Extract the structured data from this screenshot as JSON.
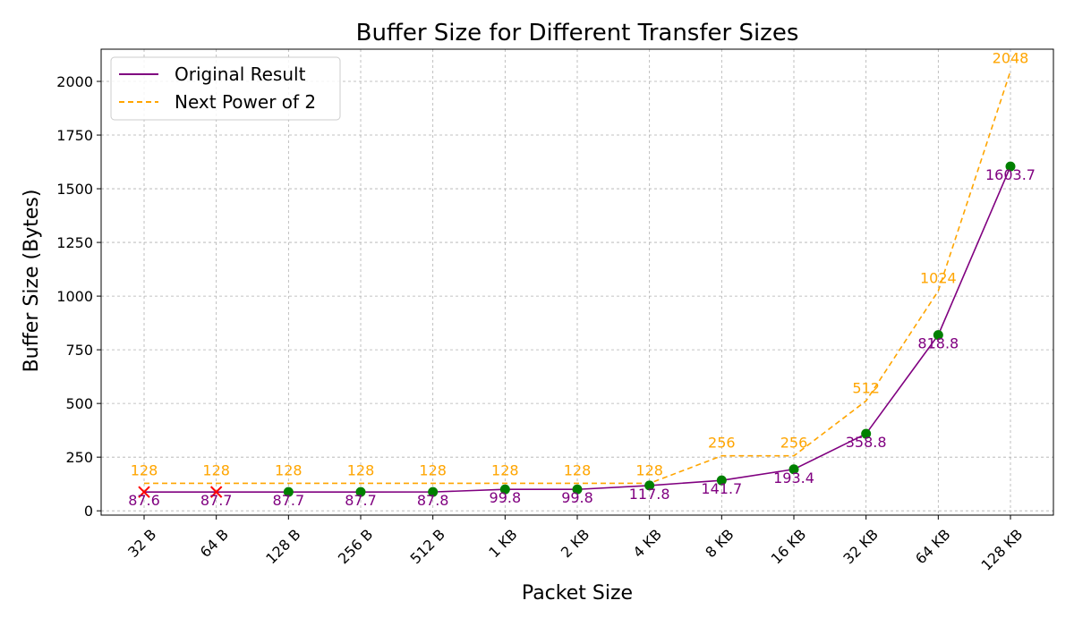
{
  "chart_data": {
    "type": "line",
    "title": "Buffer Size for Different Transfer Sizes",
    "xlabel": "Packet Size",
    "ylabel": "Buffer Size (Bytes)",
    "categories": [
      "32 B",
      "64 B",
      "128 B",
      "256 B",
      "512 B",
      "1 KB",
      "2 KB",
      "4 KB",
      "8 KB",
      "16 KB",
      "32 KB",
      "64 KB",
      "128 KB"
    ],
    "ylim": [
      -20,
      2150
    ],
    "yticks": [
      0,
      250,
      500,
      750,
      1000,
      1250,
      1500,
      1750,
      2000
    ],
    "grid": true,
    "legend_position": "top-left",
    "series": [
      {
        "name": "Original Result",
        "color": "#800080",
        "style": "solid",
        "values": [
          87.6,
          87.7,
          87.7,
          87.7,
          87.8,
          99.8,
          99.8,
          117.8,
          141.7,
          193.4,
          358.8,
          818.8,
          1603.7
        ],
        "labels": [
          "87.6",
          "87.7",
          "87.7",
          "87.7",
          "87.8",
          "99.8",
          "99.8",
          "117.8",
          "141.7",
          "193.4",
          "358.8",
          "818.8",
          "1603.7"
        ],
        "markers": [
          "x",
          "x",
          "o",
          "o",
          "o",
          "o",
          "o",
          "o",
          "o",
          "o",
          "o",
          "o",
          "o"
        ],
        "marker_colors": {
          "x": "#ff0000",
          "o": "#008000"
        }
      },
      {
        "name": "Next Power of 2",
        "color": "#ffa500",
        "style": "dashed",
        "values": [
          128,
          128,
          128,
          128,
          128,
          128,
          128,
          128,
          256,
          256,
          512,
          1024,
          2048
        ],
        "labels": [
          "128",
          "128",
          "128",
          "128",
          "128",
          "128",
          "128",
          "128",
          "256",
          "256",
          "512",
          "1024",
          "2048"
        ]
      }
    ]
  }
}
